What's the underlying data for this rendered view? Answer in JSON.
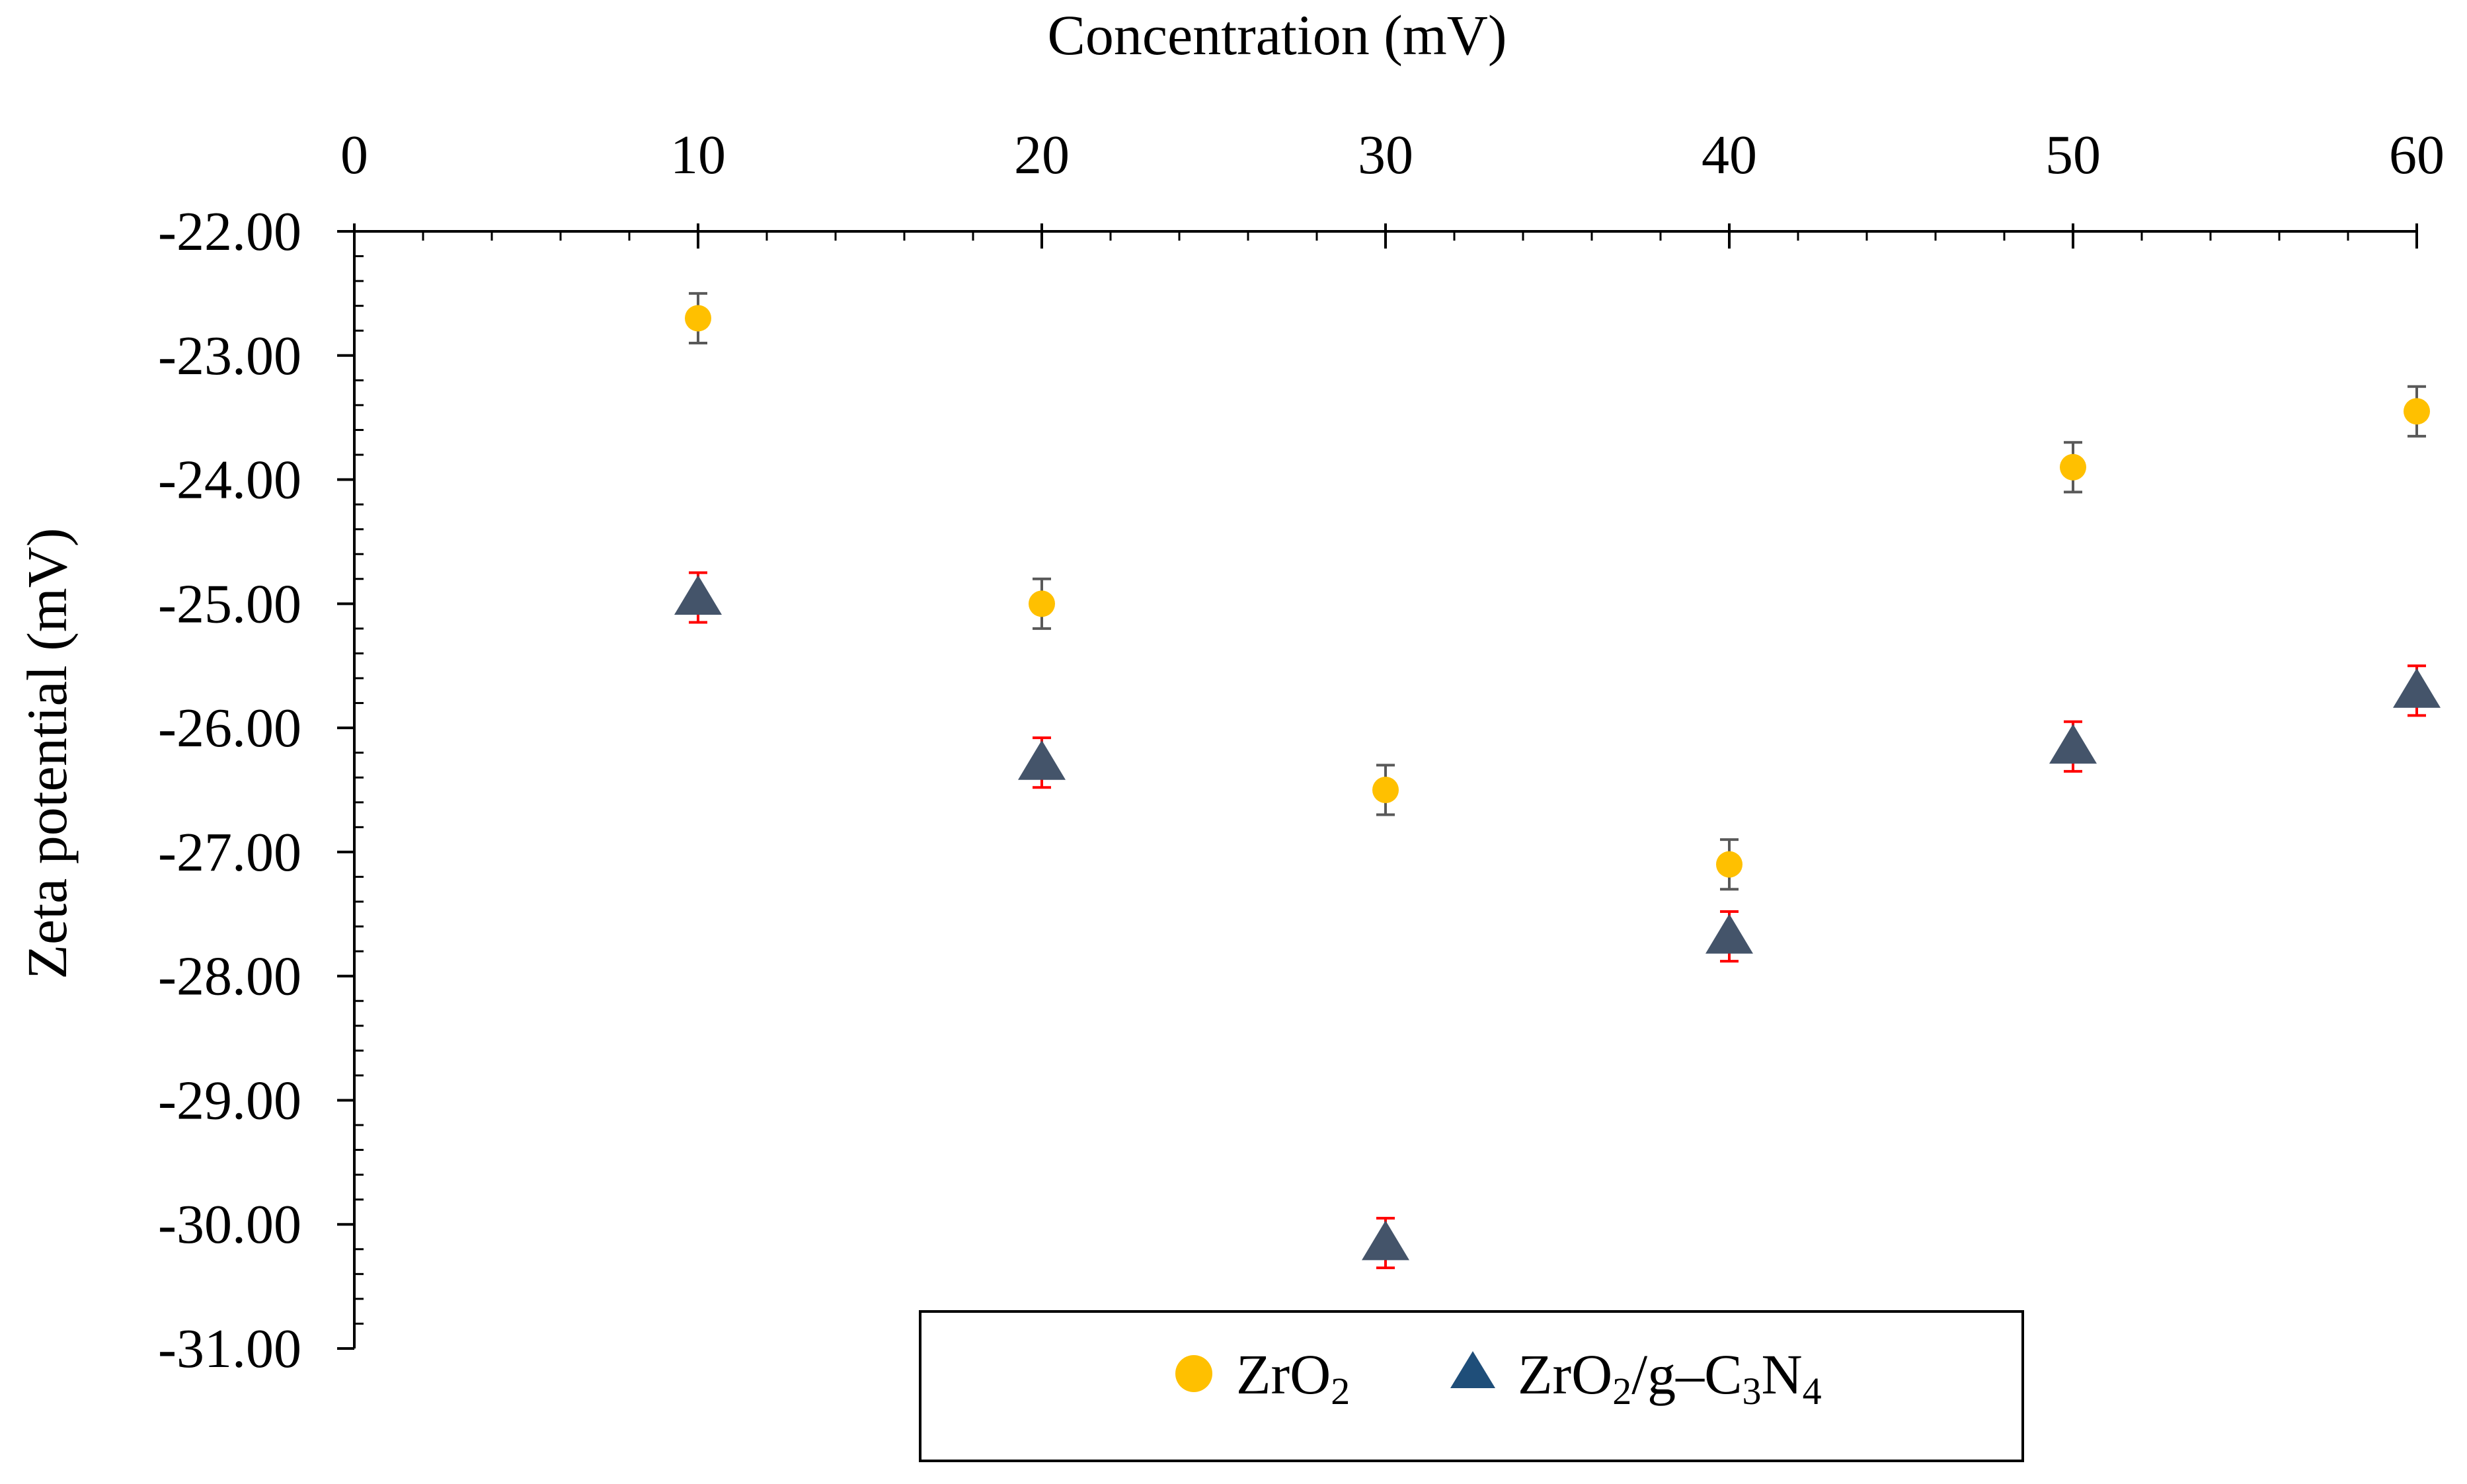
{
  "chart_data": {
    "type": "scatter",
    "title": "",
    "xlabel": "Concentration (mV)",
    "ylabel": "Zeta potential (mV)",
    "x_axis_position": "top",
    "xlim": [
      0,
      60
    ],
    "ylim": [
      -31,
      -22
    ],
    "x_ticks": [
      0,
      10,
      20,
      30,
      40,
      50,
      60
    ],
    "x_tick_labels": [
      "0",
      "10",
      "20",
      "30",
      "40",
      "50",
      "60"
    ],
    "y_ticks": [
      -22,
      -23,
      -24,
      -25,
      -26,
      -27,
      -28,
      -29,
      -30,
      -31
    ],
    "y_tick_labels": [
      "-22.00",
      "-23.00",
      "-24.00",
      "-25.00",
      "-26.00",
      "-27.00",
      "-28.00",
      "-29.00",
      "-30.00",
      "-31.00"
    ],
    "grid": false,
    "legend_position": "bottom-center",
    "series": [
      {
        "name": "ZrO2",
        "legend_label": {
          "base": "ZrO",
          "sub1": "2",
          "mid": "",
          "sub2": "",
          "tail": "",
          "sub3": ""
        },
        "marker": "circle",
        "color": "#FFC000",
        "error_bar_color": "#595959",
        "x": [
          10,
          20,
          30,
          40,
          50,
          60
        ],
        "y": [
          -22.7,
          -25.0,
          -26.5,
          -27.1,
          -23.9,
          -23.45
        ],
        "error": [
          0.2,
          0.2,
          0.2,
          0.2,
          0.2,
          0.2
        ]
      },
      {
        "name": "ZrO2/g-C3N4",
        "legend_label": {
          "base": "ZrO",
          "sub1": "2",
          "mid": "/g–C",
          "sub2": "3",
          "tail": "N",
          "sub3": "4"
        },
        "marker": "triangle",
        "color": "#44546A",
        "error_bar_color": "#FF0000",
        "x": [
          10,
          20,
          30,
          40,
          50,
          60
        ],
        "y": [
          -24.95,
          -26.28,
          -30.15,
          -27.68,
          -26.15,
          -25.7
        ],
        "error": [
          0.2,
          0.2,
          0.2,
          0.2,
          0.2,
          0.2
        ]
      }
    ]
  }
}
